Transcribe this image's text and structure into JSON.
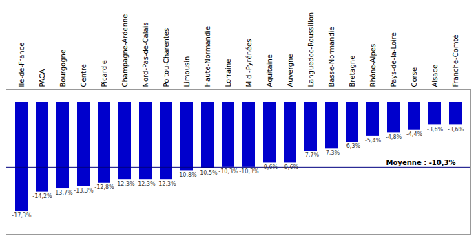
{
  "chart_data": {
    "type": "bar",
    "categories": [
      "Ile-de-France",
      "PACA",
      "Bourgogne",
      "Centre",
      "Picardie",
      "Champagne-Ardenne",
      "Nord-Pas-de-Calais",
      "Poitou-Charentes",
      "Limousin",
      "Haute-Normandie",
      "Lorraine",
      "Midi-Pyrénées",
      "Aquitaine",
      "Auvergne",
      "Languedoc-Roussillon",
      "Basse-Normandie",
      "Bretagne",
      "Rhône-Alpes",
      "Pays-de-la-Loire",
      "Corse",
      "Alsace",
      "Franche-Comté"
    ],
    "values": [
      -17.3,
      -14.2,
      -13.7,
      -13.3,
      -12.8,
      -12.3,
      -12.3,
      -12.3,
      -10.8,
      -10.5,
      -10.3,
      -10.3,
      -9.6,
      -9.6,
      -7.7,
      -7.3,
      -6.3,
      -5.4,
      -4.8,
      -4.4,
      -3.6,
      -3.6
    ],
    "value_labels": [
      "-17,3%",
      "-14,2%",
      "-13,7%",
      "-13,3%",
      "-12,8%",
      "-12,3%",
      "-12,3%",
      "-12,3%",
      "-10,8%",
      "-10,5%",
      "-10,3%",
      "-10,3%",
      "-9,6%",
      "-9,6%",
      "-7,7%",
      "-7,3%",
      "-6,3%",
      "-5,4%",
      "-4,8%",
      "-4,4%",
      "-3,6%",
      "-3,6%"
    ],
    "data_labels": true,
    "color": "#0000CC",
    "ylim": [
      -21,
      2
    ],
    "tick_labels": "x",
    "mean_line": {
      "value": -10.3,
      "label": "Moyenne : -10,3%",
      "color": "#000080"
    }
  }
}
